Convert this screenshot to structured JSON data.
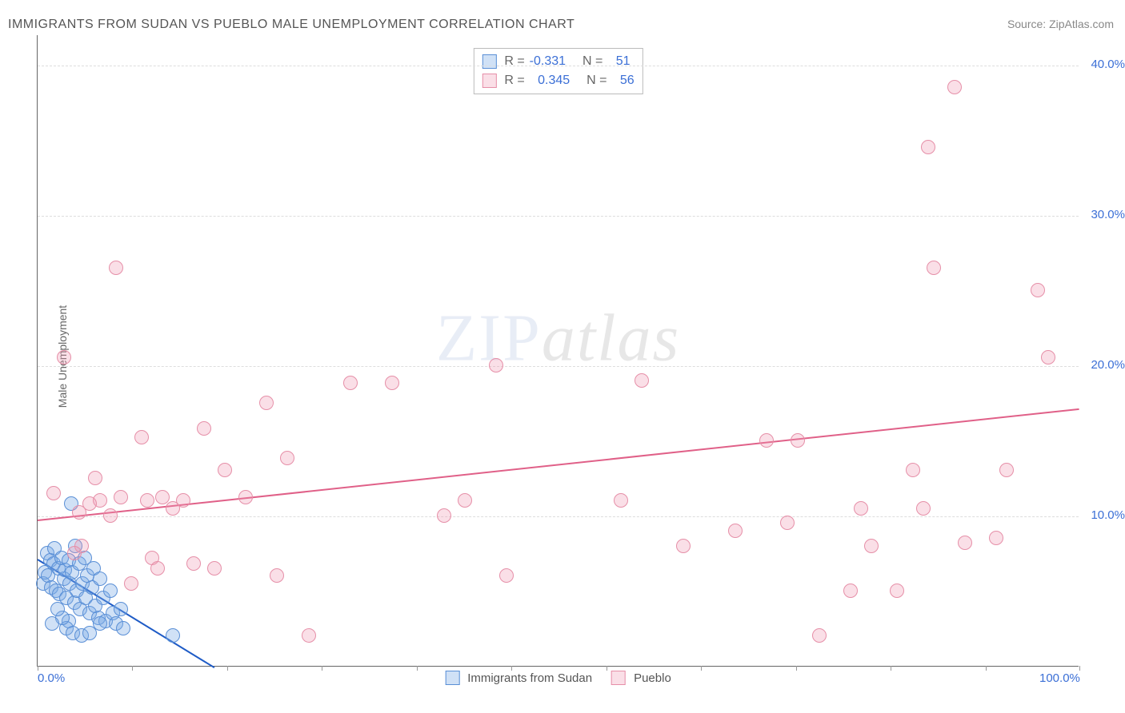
{
  "title": "IMMIGRANTS FROM SUDAN VS PUEBLO MALE UNEMPLOYMENT CORRELATION CHART",
  "source": "Source: ZipAtlas.com",
  "y_axis_label": "Male Unemployment",
  "watermark": {
    "part1": "ZIP",
    "part2": "atlas"
  },
  "chart": {
    "type": "scatter",
    "background_color": "#ffffff",
    "grid_color": "#dddddd",
    "axis_color": "#666666",
    "tick_label_color": "#3b6fd6",
    "xlim": [
      0,
      100
    ],
    "ylim": [
      0,
      42
    ],
    "y_ticks": [
      10,
      20,
      30,
      40
    ],
    "y_tick_labels": [
      "10.0%",
      "20.0%",
      "30.0%",
      "40.0%"
    ],
    "x_minor_ticks": [
      0,
      9.1,
      18.2,
      27.3,
      36.4,
      45.5,
      54.6,
      63.7,
      72.8,
      81.9,
      91.0,
      100
    ],
    "x_tick_labels": {
      "0": "0.0%",
      "100": "100.0%"
    },
    "marker_radius": 9,
    "marker_stroke_width": 1.5,
    "trend_line_width": 2
  },
  "series": [
    {
      "name": "Immigrants from Sudan",
      "key": "sudan",
      "marker_fill": "rgba(120,170,230,0.35)",
      "marker_stroke": "#5a8fd6",
      "trend_color": "#1e5bc6",
      "R": "-0.331",
      "N": "51",
      "trend": {
        "x1": 0,
        "y1": 7.2,
        "x2": 17,
        "y2": 0
      },
      "points": [
        [
          0.5,
          5.5
        ],
        [
          0.7,
          6.2
        ],
        [
          0.9,
          7.5
        ],
        [
          1.0,
          6.0
        ],
        [
          1.2,
          7.0
        ],
        [
          1.3,
          5.2
        ],
        [
          1.5,
          6.8
        ],
        [
          1.6,
          7.8
        ],
        [
          1.8,
          5.0
        ],
        [
          2.0,
          6.5
        ],
        [
          2.1,
          4.8
        ],
        [
          2.3,
          7.2
        ],
        [
          2.5,
          5.8
        ],
        [
          2.6,
          6.4
        ],
        [
          2.8,
          4.5
        ],
        [
          3.0,
          7.0
        ],
        [
          3.1,
          5.5
        ],
        [
          3.3,
          6.2
        ],
        [
          3.5,
          4.2
        ],
        [
          3.6,
          8.0
        ],
        [
          3.8,
          5.0
        ],
        [
          4.0,
          6.8
        ],
        [
          4.1,
          3.8
        ],
        [
          4.3,
          5.5
        ],
        [
          4.5,
          7.2
        ],
        [
          4.6,
          4.5
        ],
        [
          4.8,
          6.0
        ],
        [
          5.0,
          3.5
        ],
        [
          5.2,
          5.2
        ],
        [
          5.4,
          6.5
        ],
        [
          5.5,
          4.0
        ],
        [
          5.8,
          3.2
        ],
        [
          6.0,
          5.8
        ],
        [
          6.3,
          4.5
        ],
        [
          6.5,
          3.0
        ],
        [
          7.0,
          5.0
        ],
        [
          7.2,
          3.5
        ],
        [
          7.5,
          2.8
        ],
        [
          8.0,
          3.8
        ],
        [
          8.2,
          2.5
        ],
        [
          3.2,
          10.8
        ],
        [
          3.0,
          3.0
        ],
        [
          2.8,
          2.5
        ],
        [
          2.4,
          3.2
        ],
        [
          1.9,
          3.8
        ],
        [
          1.4,
          2.8
        ],
        [
          3.4,
          2.2
        ],
        [
          4.2,
          2.0
        ],
        [
          5.0,
          2.2
        ],
        [
          6.0,
          2.8
        ],
        [
          13.0,
          2.0
        ]
      ]
    },
    {
      "name": "Pueblo",
      "key": "pueblo",
      "marker_fill": "rgba(240,150,175,0.30)",
      "marker_stroke": "#e68fa8",
      "trend_color": "#e06088",
      "R": "0.345",
      "N": "56",
      "trend": {
        "x1": 0,
        "y1": 9.8,
        "x2": 100,
        "y2": 17.2
      },
      "points": [
        [
          1.5,
          11.5
        ],
        [
          2.5,
          20.5
        ],
        [
          4.0,
          10.2
        ],
        [
          4.2,
          8.0
        ],
        [
          5.5,
          12.5
        ],
        [
          6.0,
          11.0
        ],
        [
          7.0,
          10.0
        ],
        [
          7.5,
          26.5
        ],
        [
          8.0,
          11.2
        ],
        [
          9.0,
          5.5
        ],
        [
          10.0,
          15.2
        ],
        [
          10.5,
          11.0
        ],
        [
          11.0,
          7.2
        ],
        [
          11.5,
          6.5
        ],
        [
          12.0,
          11.2
        ],
        [
          14.0,
          11.0
        ],
        [
          15.0,
          6.8
        ],
        [
          16.0,
          15.8
        ],
        [
          17.0,
          6.5
        ],
        [
          18.0,
          13.0
        ],
        [
          20.0,
          11.2
        ],
        [
          22.0,
          17.5
        ],
        [
          23.0,
          6.0
        ],
        [
          24.0,
          13.8
        ],
        [
          26.0,
          2.0
        ],
        [
          30.0,
          18.8
        ],
        [
          34.0,
          18.8
        ],
        [
          39.0,
          10.0
        ],
        [
          41.0,
          11.0
        ],
        [
          44.0,
          20.0
        ],
        [
          56.0,
          11.0
        ],
        [
          58.0,
          19.0
        ],
        [
          62.0,
          8.0
        ],
        [
          67.0,
          9.0
        ],
        [
          70.0,
          15.0
        ],
        [
          72.0,
          9.5
        ],
        [
          73.0,
          15.0
        ],
        [
          75.0,
          2.0
        ],
        [
          78.0,
          5.0
        ],
        [
          79.0,
          10.5
        ],
        [
          80.0,
          8.0
        ],
        [
          82.5,
          5.0
        ],
        [
          84.0,
          13.0
        ],
        [
          85.0,
          10.5
        ],
        [
          85.5,
          34.5
        ],
        [
          86.0,
          26.5
        ],
        [
          88.0,
          38.5
        ],
        [
          89.0,
          8.2
        ],
        [
          92.0,
          8.5
        ],
        [
          93.0,
          13.0
        ],
        [
          96.0,
          25.0
        ],
        [
          97.0,
          20.5
        ],
        [
          5.0,
          10.8
        ],
        [
          3.5,
          7.5
        ],
        [
          13.0,
          10.5
        ],
        [
          45.0,
          6.0
        ]
      ]
    }
  ],
  "legend": {
    "r_label": "R =",
    "n_label": "N =",
    "bottom": [
      "Immigrants from Sudan",
      "Pueblo"
    ]
  }
}
